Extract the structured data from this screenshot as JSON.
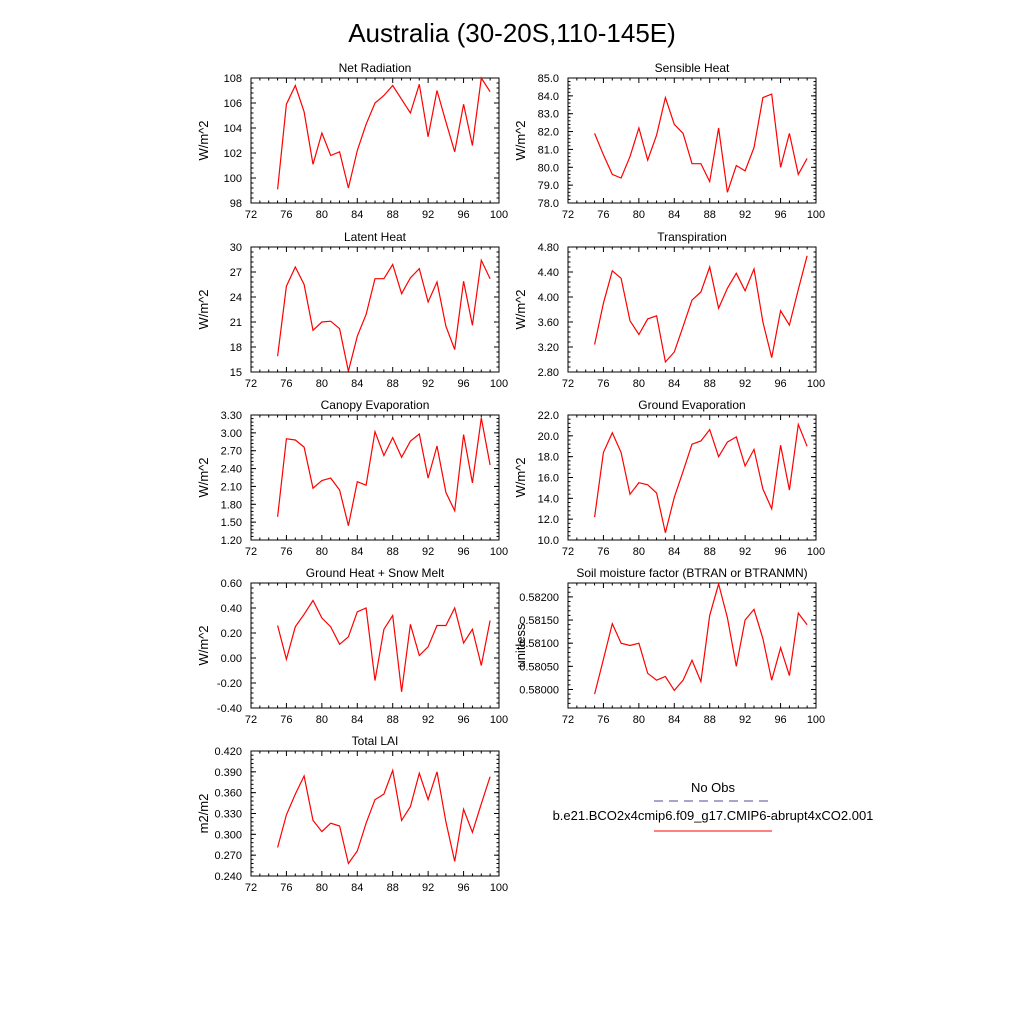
{
  "title": "Australia (30-20S,110-145E)",
  "legend": {
    "obs_label": "No Obs",
    "case_label": "b.e21.BCO2x4cmip6.f09_g17.CMIP6-abrupt4xCO2.001",
    "obs_color": "#4b4b9b",
    "case_color": "#ff0000"
  },
  "chart_data": [
    {
      "type": "line",
      "title": "Net Radiation",
      "ylabel": "W/m^2",
      "xlim": [
        72,
        100
      ],
      "xticks": [
        72,
        76,
        80,
        84,
        88,
        92,
        96,
        100
      ],
      "ylim": [
        98,
        108
      ],
      "yticks": [
        98,
        100,
        102,
        104,
        106,
        108
      ],
      "ydecimals": 0,
      "series": [
        {
          "color": "#ff0000",
          "x": [
            75,
            76,
            77,
            78,
            79,
            80,
            81,
            82,
            83,
            84,
            85,
            86,
            87,
            88,
            89,
            90,
            91,
            92,
            93,
            94,
            95,
            96,
            97,
            98,
            99
          ],
          "values": [
            99.1,
            105.9,
            107.4,
            105.3,
            101.1,
            103.6,
            101.8,
            102.1,
            99.2,
            102.2,
            104.3,
            106.0,
            106.6,
            107.4,
            106.3,
            105.2,
            107.5,
            103.3,
            107.0,
            104.5,
            102.1,
            105.9,
            102.6,
            108.0,
            106.9
          ]
        }
      ]
    },
    {
      "type": "line",
      "title": "Sensible Heat",
      "ylabel": "W/m^2",
      "xlim": [
        72,
        100
      ],
      "xticks": [
        72,
        76,
        80,
        84,
        88,
        92,
        96,
        100
      ],
      "ylim": [
        78,
        85
      ],
      "yticks": [
        78,
        79,
        80,
        81,
        82,
        83,
        84,
        85
      ],
      "ydecimals": 1,
      "series": [
        {
          "color": "#ff0000",
          "x": [
            75,
            76,
            77,
            78,
            79,
            80,
            81,
            82,
            83,
            84,
            85,
            86,
            87,
            88,
            89,
            90,
            91,
            92,
            93,
            94,
            95,
            96,
            97,
            98,
            99
          ],
          "values": [
            81.9,
            80.7,
            79.6,
            79.4,
            80.6,
            82.2,
            80.4,
            81.8,
            83.9,
            82.4,
            81.9,
            80.2,
            80.2,
            79.2,
            82.2,
            78.6,
            80.1,
            79.8,
            81.1,
            83.9,
            84.1,
            80.0,
            81.9,
            79.6,
            80.5
          ]
        }
      ]
    },
    {
      "type": "line",
      "title": "Latent Heat",
      "ylabel": "W/m^2",
      "xlim": [
        72,
        100
      ],
      "xticks": [
        72,
        76,
        80,
        84,
        88,
        92,
        96,
        100
      ],
      "ylim": [
        15,
        30
      ],
      "yticks": [
        15,
        18,
        21,
        24,
        27,
        30
      ],
      "ydecimals": 0,
      "series": [
        {
          "color": "#ff0000",
          "x": [
            75,
            76,
            77,
            78,
            79,
            80,
            81,
            82,
            83,
            84,
            85,
            86,
            87,
            88,
            89,
            90,
            91,
            92,
            93,
            94,
            95,
            96,
            97,
            98,
            99
          ],
          "values": [
            16.9,
            25.3,
            27.6,
            25.5,
            20.0,
            21.0,
            21.1,
            20.2,
            15.1,
            19.3,
            21.9,
            26.2,
            26.2,
            27.9,
            24.4,
            26.3,
            27.4,
            23.4,
            25.8,
            20.5,
            17.7,
            25.9,
            20.6,
            28.4,
            26.2
          ]
        }
      ]
    },
    {
      "type": "line",
      "title": "Transpiration",
      "ylabel": "W/m^2",
      "xlim": [
        72,
        100
      ],
      "xticks": [
        72,
        76,
        80,
        84,
        88,
        92,
        96,
        100
      ],
      "ylim": [
        2.8,
        4.8
      ],
      "yticks": [
        2.8,
        3.2,
        3.6,
        4.0,
        4.4,
        4.8
      ],
      "ydecimals": 2,
      "series": [
        {
          "color": "#ff0000",
          "x": [
            75,
            76,
            77,
            78,
            79,
            80,
            81,
            82,
            83,
            84,
            85,
            86,
            87,
            88,
            89,
            90,
            91,
            92,
            93,
            94,
            95,
            96,
            97,
            98,
            99
          ],
          "values": [
            3.24,
            3.9,
            4.42,
            4.3,
            3.62,
            3.4,
            3.65,
            3.7,
            2.96,
            3.12,
            3.53,
            3.95,
            4.08,
            4.48,
            3.82,
            4.14,
            4.38,
            4.1,
            4.45,
            3.6,
            3.03,
            3.78,
            3.55,
            4.12,
            4.66
          ]
        }
      ]
    },
    {
      "type": "line",
      "title": "Canopy Evaporation",
      "ylabel": "W/m^2",
      "xlim": [
        72,
        100
      ],
      "xticks": [
        72,
        76,
        80,
        84,
        88,
        92,
        96,
        100
      ],
      "ylim": [
        1.2,
        3.3
      ],
      "yticks": [
        1.2,
        1.5,
        1.8,
        2.1,
        2.4,
        2.7,
        3.0,
        3.3
      ],
      "ydecimals": 2,
      "series": [
        {
          "color": "#ff0000",
          "x": [
            75,
            76,
            77,
            78,
            79,
            80,
            81,
            82,
            83,
            84,
            85,
            86,
            87,
            88,
            89,
            90,
            91,
            92,
            93,
            94,
            95,
            96,
            97,
            98,
            99
          ],
          "values": [
            1.59,
            2.9,
            2.88,
            2.76,
            2.07,
            2.2,
            2.24,
            2.04,
            1.44,
            2.18,
            2.12,
            3.02,
            2.62,
            2.92,
            2.59,
            2.86,
            2.98,
            2.24,
            2.78,
            2.0,
            1.69,
            2.97,
            2.16,
            3.25,
            2.46
          ]
        }
      ]
    },
    {
      "type": "line",
      "title": "Ground Evaporation",
      "ylabel": "W/m^2",
      "xlim": [
        72,
        100
      ],
      "xticks": [
        72,
        76,
        80,
        84,
        88,
        92,
        96,
        100
      ],
      "ylim": [
        10,
        22
      ],
      "yticks": [
        10,
        12,
        14,
        16,
        18,
        20,
        22
      ],
      "ydecimals": 1,
      "series": [
        {
          "color": "#ff0000",
          "x": [
            75,
            76,
            77,
            78,
            79,
            80,
            81,
            82,
            83,
            84,
            85,
            86,
            87,
            88,
            89,
            90,
            91,
            92,
            93,
            94,
            95,
            96,
            97,
            98,
            99
          ],
          "values": [
            12.2,
            18.4,
            20.3,
            18.4,
            14.4,
            15.5,
            15.3,
            14.5,
            10.7,
            14.1,
            16.6,
            19.2,
            19.5,
            20.6,
            18.0,
            19.4,
            19.9,
            17.1,
            18.7,
            14.9,
            13.0,
            19.1,
            14.8,
            21.1,
            19.0
          ]
        }
      ]
    },
    {
      "type": "line",
      "title": "Ground Heat + Snow Melt",
      "ylabel": "W/m^2",
      "xlim": [
        72,
        100
      ],
      "xticks": [
        72,
        76,
        80,
        84,
        88,
        92,
        96,
        100
      ],
      "ylim": [
        -0.4,
        0.6
      ],
      "yticks": [
        -0.4,
        -0.2,
        0.0,
        0.2,
        0.4,
        0.6
      ],
      "ydecimals": 2,
      "series": [
        {
          "color": "#ff0000",
          "x": [
            75,
            76,
            77,
            78,
            79,
            80,
            81,
            82,
            83,
            84,
            85,
            86,
            87,
            88,
            89,
            90,
            91,
            92,
            93,
            94,
            95,
            96,
            97,
            98,
            99
          ],
          "values": [
            0.26,
            -0.01,
            0.25,
            0.35,
            0.46,
            0.32,
            0.25,
            0.11,
            0.17,
            0.37,
            0.4,
            -0.18,
            0.23,
            0.34,
            -0.27,
            0.27,
            0.02,
            0.09,
            0.26,
            0.26,
            0.4,
            0.12,
            0.23,
            -0.06,
            0.3
          ]
        }
      ]
    },
    {
      "type": "line",
      "title": "Soil moisture factor (BTRAN or BTRANMN)",
      "ylabel": "unitless",
      "xlim": [
        72,
        100
      ],
      "xticks": [
        72,
        76,
        80,
        84,
        88,
        92,
        96,
        100
      ],
      "ylim": [
        0.5796,
        0.5823
      ],
      "yticks": [
        0.58,
        0.5805,
        0.581,
        0.5815,
        0.582
      ],
      "ydecimals": 5,
      "series": [
        {
          "color": "#ff0000",
          "x": [
            75,
            76,
            77,
            78,
            79,
            80,
            81,
            82,
            83,
            84,
            85,
            86,
            87,
            88,
            89,
            90,
            91,
            92,
            93,
            94,
            95,
            96,
            97,
            98,
            99
          ],
          "values": [
            0.5799,
            0.58065,
            0.58142,
            0.581,
            0.58095,
            0.581,
            0.58035,
            0.5802,
            0.58028,
            0.57998,
            0.5802,
            0.58063,
            0.58017,
            0.5816,
            0.58228,
            0.58155,
            0.5805,
            0.5815,
            0.58173,
            0.5811,
            0.5802,
            0.5809,
            0.5803,
            0.58165,
            0.5814
          ]
        }
      ]
    },
    {
      "type": "line",
      "title": "Total LAI",
      "ylabel": "m2/m2",
      "xlim": [
        72,
        100
      ],
      "xticks": [
        72,
        76,
        80,
        84,
        88,
        92,
        96,
        100
      ],
      "ylim": [
        0.24,
        0.42
      ],
      "yticks": [
        0.24,
        0.27,
        0.3,
        0.33,
        0.36,
        0.39,
        0.42
      ],
      "ydecimals": 3,
      "series": [
        {
          "color": "#ff0000",
          "x": [
            75,
            76,
            77,
            78,
            79,
            80,
            81,
            82,
            83,
            84,
            85,
            86,
            87,
            88,
            89,
            90,
            91,
            92,
            93,
            94,
            95,
            96,
            97,
            98,
            99
          ],
          "values": [
            0.281,
            0.328,
            0.358,
            0.384,
            0.32,
            0.304,
            0.316,
            0.312,
            0.258,
            0.276,
            0.316,
            0.35,
            0.358,
            0.392,
            0.32,
            0.34,
            0.388,
            0.35,
            0.39,
            0.318,
            0.261,
            0.336,
            0.303,
            0.344,
            0.383
          ]
        }
      ]
    }
  ]
}
